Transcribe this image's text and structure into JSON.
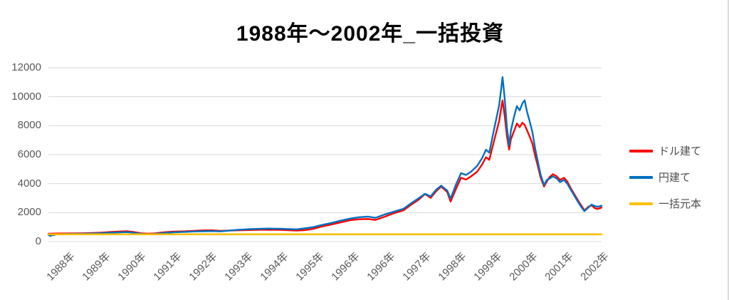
{
  "title": "1988年〜2002年_一括投資",
  "legend": {
    "items": [
      {
        "label": "ドル建て",
        "color": "#FF0000"
      },
      {
        "label": "円建て",
        "color": "#0070C0"
      },
      {
        "label": "一括元本",
        "color": "#FFC000"
      }
    ]
  },
  "colors": {
    "grid": "#D9D9D9",
    "axis_text": "#595959",
    "title_text": "#000000",
    "background": "#FFFFFF",
    "series_dollar": "#FF0000",
    "series_yen": "#0070C0",
    "series_principal": "#FFC000"
  },
  "chart_data": {
    "type": "line",
    "title": "1988年〜2002年_一括投資",
    "xlabel": "",
    "ylabel": "",
    "ylim": [
      0,
      12000
    ],
    "y_ticks": [
      0,
      2000,
      4000,
      6000,
      8000,
      10000,
      12000
    ],
    "grid": "horizontal",
    "legend_position": "right",
    "x_tick_labels": [
      "1988年",
      "1989年",
      "1990年",
      "1991年",
      "1992年",
      "1993年",
      "1994年",
      "1995年",
      "1996年",
      "1996年",
      "1997年",
      "1998年",
      "1999年",
      "2000年",
      "2001年",
      "2002年"
    ],
    "x_encoding": "t = fractional position along the x-axis from start 1988 (0) to end 2002 (1)",
    "t": [
      0.0,
      0.003,
      0.006,
      0.015,
      0.035,
      0.054,
      0.073,
      0.093,
      0.112,
      0.129,
      0.142,
      0.154,
      0.167,
      0.18,
      0.193,
      0.209,
      0.228,
      0.247,
      0.263,
      0.279,
      0.296,
      0.311,
      0.327,
      0.344,
      0.363,
      0.382,
      0.399,
      0.417,
      0.434,
      0.449,
      0.463,
      0.479,
      0.494,
      0.514,
      0.53,
      0.546,
      0.562,
      0.578,
      0.591,
      0.607,
      0.624,
      0.642,
      0.656,
      0.669,
      0.681,
      0.691,
      0.701,
      0.71,
      0.721,
      0.727,
      0.737,
      0.746,
      0.755,
      0.764,
      0.775,
      0.784,
      0.791,
      0.797,
      0.803,
      0.809,
      0.815,
      0.818,
      0.821,
      0.825,
      0.829,
      0.833,
      0.836,
      0.842,
      0.847,
      0.852,
      0.857,
      0.861,
      0.865,
      0.87,
      0.875,
      0.88,
      0.885,
      0.89,
      0.896,
      0.901,
      0.906,
      0.912,
      0.919,
      0.925,
      0.932,
      0.938,
      0.944,
      0.951,
      0.958,
      0.964,
      0.969,
      0.976,
      0.982,
      0.988,
      0.993,
      1.0
    ],
    "series": [
      {
        "name": "ドル建て",
        "color": "#FF0000",
        "width": 2.4,
        "values": [
          540,
          548,
          552,
          555,
          560,
          568,
          580,
          610,
          660,
          700,
          715,
          660,
          575,
          545,
          565,
          640,
          690,
          710,
          745,
          770,
          775,
          745,
          755,
          775,
          795,
          815,
          820,
          805,
          785,
          760,
          790,
          880,
          1040,
          1200,
          1340,
          1480,
          1540,
          1560,
          1490,
          1700,
          1950,
          2160,
          2550,
          2880,
          3280,
          3020,
          3480,
          3800,
          3420,
          2760,
          3650,
          4400,
          4280,
          4500,
          4820,
          5320,
          5820,
          5640,
          6550,
          7450,
          8350,
          9100,
          9750,
          8650,
          7250,
          6350,
          7050,
          7650,
          8150,
          7900,
          8200,
          8050,
          7700,
          7250,
          6750,
          5900,
          5200,
          4400,
          3800,
          4150,
          4450,
          4650,
          4500,
          4250,
          4400,
          4150,
          3700,
          3250,
          2800,
          2450,
          2150,
          2400,
          2500,
          2300,
          2250,
          2350
        ]
      },
      {
        "name": "円建て",
        "color": "#0070C0",
        "width": 2.4,
        "values": [
          470,
          390,
          430,
          500,
          525,
          535,
          550,
          575,
          610,
          640,
          655,
          610,
          535,
          505,
          530,
          595,
          645,
          670,
          700,
          715,
          725,
          705,
          755,
          815,
          855,
          880,
          900,
          885,
          865,
          845,
          910,
          1000,
          1140,
          1310,
          1460,
          1590,
          1680,
          1720,
          1640,
          1860,
          2060,
          2260,
          2650,
          2980,
          3300,
          3120,
          3580,
          3860,
          3520,
          2960,
          3950,
          4720,
          4600,
          4820,
          5220,
          5760,
          6340,
          6140,
          7250,
          8350,
          9450,
          10400,
          11350,
          9850,
          7850,
          6650,
          7650,
          8650,
          9350,
          9050,
          9550,
          9750,
          9000,
          8300,
          7550,
          6400,
          5500,
          4600,
          3900,
          4250,
          4350,
          4500,
          4350,
          4100,
          4250,
          4000,
          3600,
          3150,
          2700,
          2350,
          2100,
          2350,
          2550,
          2450,
          2400,
          2480
        ]
      },
      {
        "name": "一括元本",
        "color": "#FFC000",
        "width": 2.6,
        "constant": 500
      }
    ]
  }
}
